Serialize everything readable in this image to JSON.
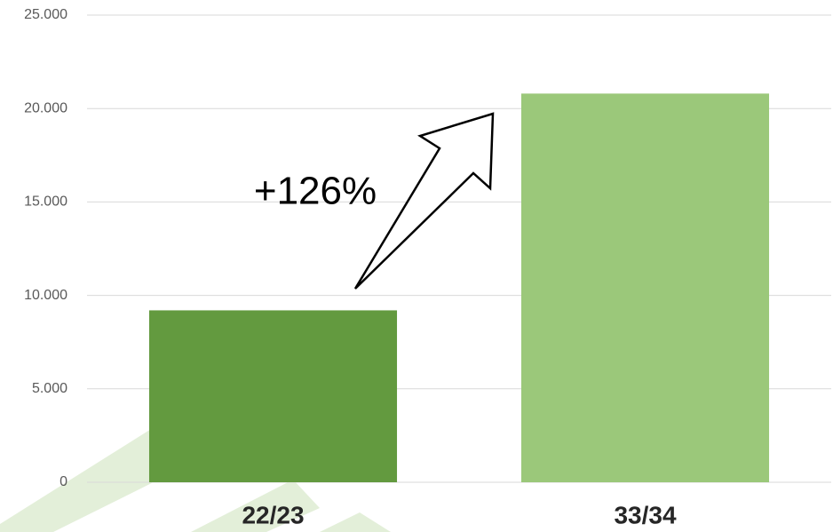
{
  "chart_data": {
    "type": "bar",
    "categories": [
      "22/23",
      "33/34"
    ],
    "values": [
      9200,
      20800
    ],
    "colors": [
      "#639a3f",
      "#9bc87a"
    ],
    "annotation": "+126%",
    "ylim": [
      0,
      25000
    ],
    "yticks": [
      0,
      {
        "value": 5000,
        "label": "5.000"
      },
      {
        "value": 10000,
        "label": "10.000"
      },
      {
        "value": 15000,
        "label": "15.000"
      },
      {
        "value": 20000,
        "label": "20.000"
      },
      {
        "value": 25000,
        "label": "25.000"
      }
    ],
    "grid": true
  }
}
